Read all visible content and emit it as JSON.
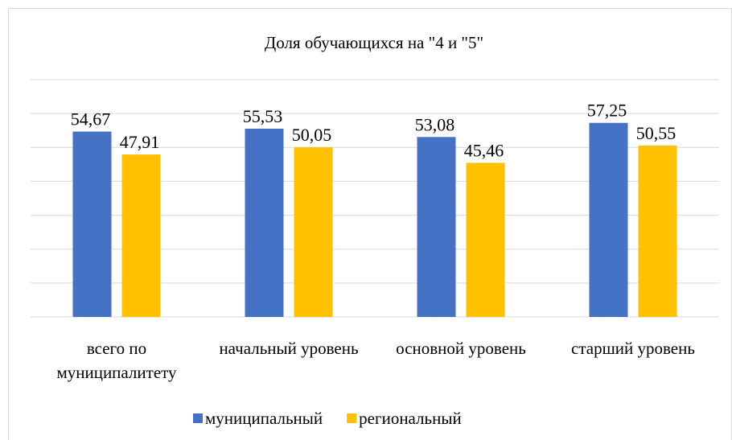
{
  "chart_data": {
    "type": "bar",
    "title": "Доля обучающихся на \"4 и \"5\"",
    "categories": [
      "всего по муниципалитету",
      "начальный уровень",
      "основной уровень",
      "старший уровень"
    ],
    "series": [
      {
        "name": "муниципальный",
        "color": "#4472c4",
        "values": [
          54.67,
          55.53,
          53.08,
          57.25
        ],
        "value_labels": [
          "54,67",
          "55,53",
          "53,08",
          "57,25"
        ]
      },
      {
        "name": "региональный",
        "color": "#ffc000",
        "values": [
          47.91,
          50.05,
          45.46,
          50.55
        ],
        "value_labels": [
          "47,91",
          "50,05",
          "45,46",
          "50,55"
        ]
      }
    ],
    "ylim": [
      0,
      70
    ],
    "yticks": [
      0,
      10,
      20,
      30,
      40,
      50,
      60,
      70
    ],
    "grid": true,
    "legend": "bottom"
  }
}
